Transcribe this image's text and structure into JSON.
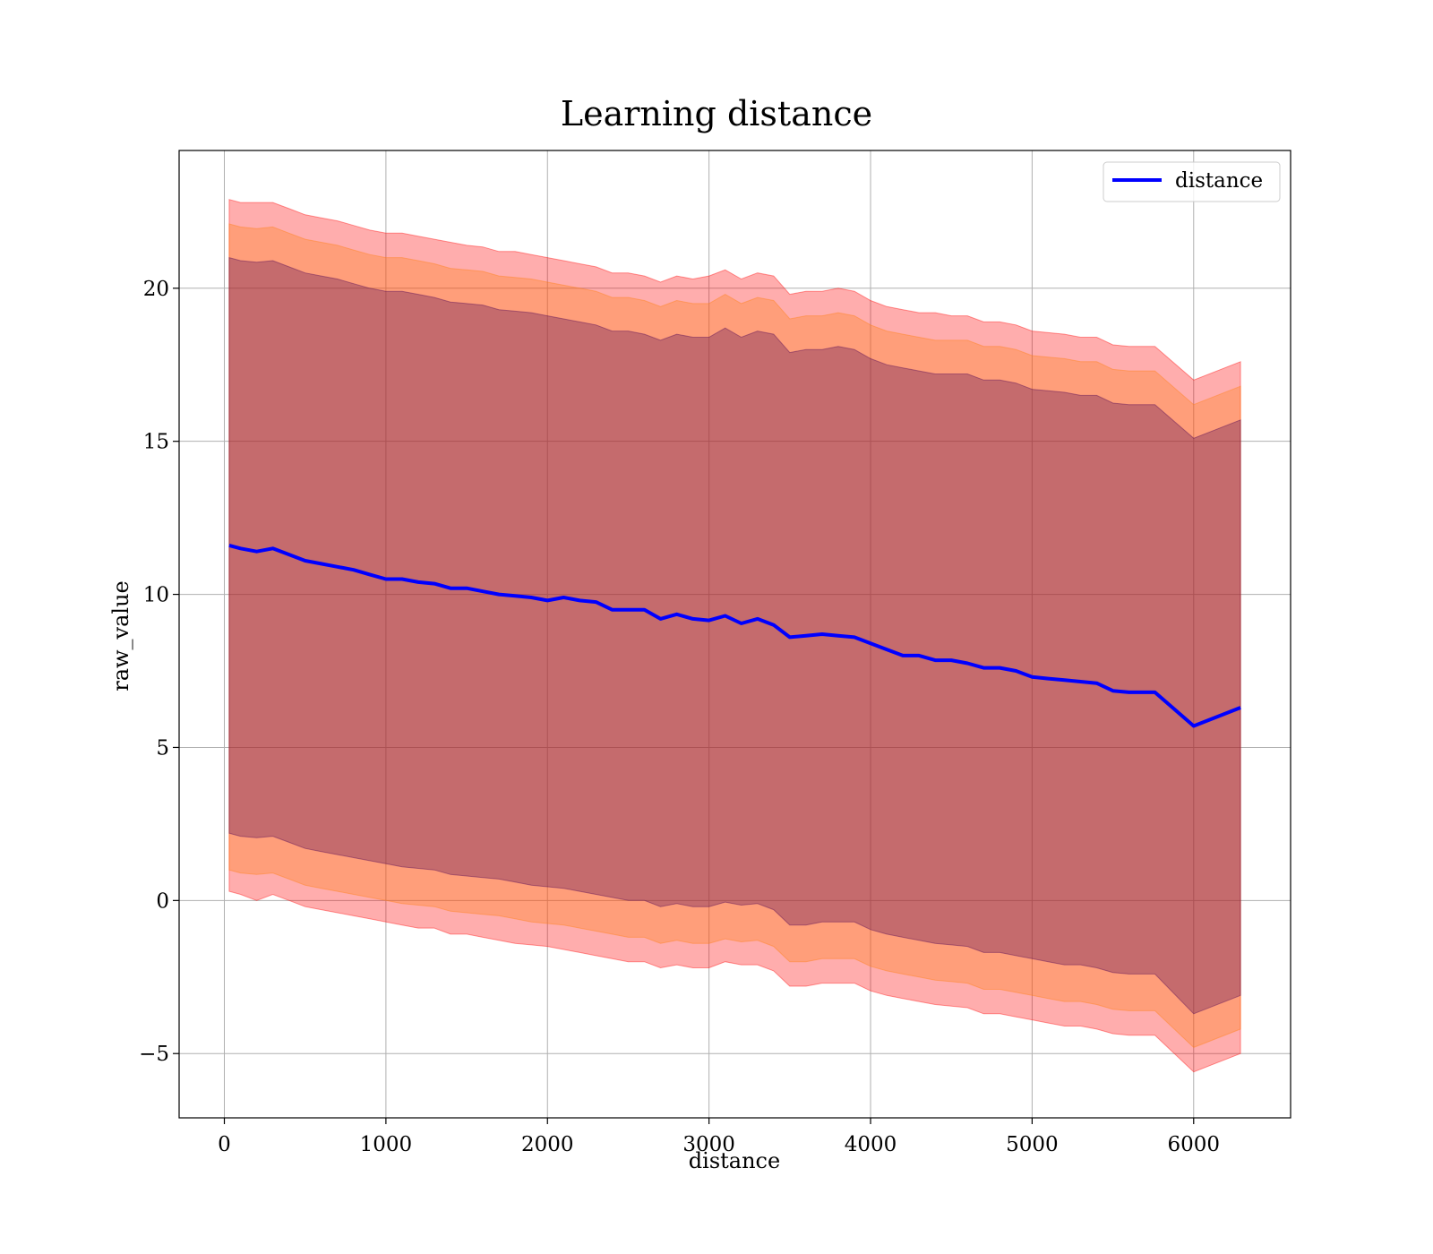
{
  "chart_data": {
    "type": "line",
    "title": "Learning distance",
    "xlabel": "distance",
    "ylabel": "raw_value",
    "xlim": [
      -280,
      6600
    ],
    "ylim": [
      -7.1,
      24.5
    ],
    "xticks": [
      0,
      1000,
      2000,
      3000,
      4000,
      5000,
      6000
    ],
    "yticks": [
      -5,
      0,
      5,
      10,
      15,
      20
    ],
    "xtick_labels": [
      "0",
      "1000",
      "2000",
      "3000",
      "4000",
      "5000",
      "6000"
    ],
    "ytick_labels": [
      "−5",
      "0",
      "5",
      "10",
      "15",
      "20"
    ],
    "grid": true,
    "legend": {
      "position": "upper right",
      "entries": [
        "distance"
      ]
    },
    "colors": {
      "line": "#0000ff",
      "band_outer": "#ff0000",
      "band_middle": "#ff7f0e",
      "band_inner": "#4b0055",
      "grid": "#b0b0b0"
    },
    "x": [
      30,
      100,
      200,
      300,
      400,
      500,
      600,
      700,
      800,
      900,
      1000,
      1100,
      1200,
      1300,
      1400,
      1500,
      1600,
      1700,
      1800,
      1900,
      2000,
      2100,
      2200,
      2300,
      2400,
      2500,
      2600,
      2700,
      2800,
      2900,
      3000,
      3100,
      3200,
      3300,
      3400,
      3500,
      3600,
      3700,
      3800,
      3900,
      4000,
      4100,
      4200,
      4300,
      4400,
      4500,
      4600,
      4700,
      4800,
      4900,
      5000,
      5100,
      5200,
      5300,
      5400,
      5500,
      5600,
      5700,
      5760,
      6000,
      6290
    ],
    "series": [
      {
        "name": "distance",
        "values": [
          11.6,
          11.5,
          11.4,
          11.5,
          11.3,
          11.1,
          11.0,
          10.9,
          10.8,
          10.65,
          10.5,
          10.5,
          10.4,
          10.35,
          10.2,
          10.2,
          10.1,
          10.0,
          9.95,
          9.9,
          9.8,
          9.9,
          9.8,
          9.75,
          9.5,
          9.5,
          9.5,
          9.2,
          9.35,
          9.2,
          9.15,
          9.3,
          9.05,
          9.2,
          9.0,
          8.6,
          8.65,
          8.7,
          8.65,
          8.6,
          8.4,
          8.2,
          8.0,
          8.0,
          7.85,
          7.85,
          7.75,
          7.6,
          7.6,
          7.5,
          7.3,
          7.25,
          7.2,
          7.15,
          7.1,
          6.85,
          6.8,
          6.8,
          6.8,
          5.7,
          6.3
        ]
      }
    ],
    "bands": [
      {
        "color": "#ff0000",
        "upper": [
          22.9,
          22.8,
          22.8,
          22.8,
          22.6,
          22.4,
          22.3,
          22.2,
          22.05,
          21.9,
          21.8,
          21.8,
          21.7,
          21.6,
          21.5,
          21.4,
          21.35,
          21.2,
          21.2,
          21.1,
          21.0,
          20.9,
          20.8,
          20.7,
          20.5,
          20.5,
          20.4,
          20.2,
          20.4,
          20.3,
          20.4,
          20.6,
          20.3,
          20.5,
          20.4,
          19.8,
          19.9,
          19.9,
          20.0,
          19.9,
          19.6,
          19.4,
          19.3,
          19.2,
          19.2,
          19.1,
          19.1,
          18.9,
          18.9,
          18.8,
          18.6,
          18.55,
          18.5,
          18.4,
          18.4,
          18.15,
          18.1,
          18.1,
          18.1,
          17.0,
          17.6
        ],
        "lower": [
          0.3,
          0.2,
          0.0,
          0.2,
          -0.0,
          -0.2,
          -0.3,
          -0.4,
          -0.5,
          -0.6,
          -0.7,
          -0.8,
          -0.9,
          -0.9,
          -1.1,
          -1.1,
          -1.2,
          -1.3,
          -1.4,
          -1.45,
          -1.5,
          -1.6,
          -1.7,
          -1.8,
          -1.9,
          -2.0,
          -2.0,
          -2.2,
          -2.1,
          -2.2,
          -2.2,
          -2.0,
          -2.1,
          -2.1,
          -2.3,
          -2.8,
          -2.8,
          -2.7,
          -2.7,
          -2.7,
          -2.95,
          -3.1,
          -3.2,
          -3.3,
          -3.4,
          -3.45,
          -3.5,
          -3.7,
          -3.7,
          -3.8,
          -3.9,
          -4.0,
          -4.1,
          -4.1,
          -4.2,
          -4.35,
          -4.4,
          -4.4,
          -4.4,
          -5.6,
          -5.0
        ]
      },
      {
        "color": "#ff7f0e",
        "upper": [
          22.1,
          22.0,
          21.95,
          22.0,
          21.8,
          21.6,
          21.5,
          21.4,
          21.25,
          21.1,
          21.0,
          21.0,
          20.9,
          20.8,
          20.65,
          20.6,
          20.55,
          20.4,
          20.35,
          20.3,
          20.2,
          20.1,
          20.0,
          19.9,
          19.7,
          19.7,
          19.6,
          19.4,
          19.6,
          19.5,
          19.5,
          19.8,
          19.5,
          19.7,
          19.6,
          19.0,
          19.1,
          19.1,
          19.2,
          19.1,
          18.8,
          18.6,
          18.5,
          18.4,
          18.3,
          18.3,
          18.3,
          18.1,
          18.1,
          18.0,
          17.8,
          17.75,
          17.7,
          17.6,
          17.6,
          17.35,
          17.3,
          17.3,
          17.3,
          16.2,
          16.8
        ],
        "lower": [
          1.0,
          0.9,
          0.85,
          0.9,
          0.7,
          0.5,
          0.4,
          0.3,
          0.2,
          0.1,
          0.0,
          -0.1,
          -0.15,
          -0.2,
          -0.35,
          -0.4,
          -0.45,
          -0.5,
          -0.6,
          -0.7,
          -0.75,
          -0.8,
          -0.9,
          -1.0,
          -1.1,
          -1.2,
          -1.2,
          -1.4,
          -1.3,
          -1.4,
          -1.4,
          -1.25,
          -1.35,
          -1.3,
          -1.5,
          -2.0,
          -2.0,
          -1.9,
          -1.9,
          -1.9,
          -2.15,
          -2.3,
          -2.4,
          -2.5,
          -2.6,
          -2.65,
          -2.7,
          -2.9,
          -2.9,
          -3.0,
          -3.1,
          -3.2,
          -3.3,
          -3.3,
          -3.4,
          -3.55,
          -3.6,
          -3.6,
          -3.6,
          -4.8,
          -4.2
        ]
      },
      {
        "color": "#4b0055",
        "upper": [
          21.0,
          20.9,
          20.85,
          20.9,
          20.7,
          20.5,
          20.4,
          20.3,
          20.15,
          20.0,
          19.9,
          19.9,
          19.8,
          19.7,
          19.55,
          19.5,
          19.45,
          19.3,
          19.25,
          19.2,
          19.1,
          19.0,
          18.9,
          18.8,
          18.6,
          18.6,
          18.5,
          18.3,
          18.5,
          18.4,
          18.4,
          18.7,
          18.4,
          18.6,
          18.5,
          17.9,
          18.0,
          18.0,
          18.1,
          18.0,
          17.7,
          17.5,
          17.4,
          17.3,
          17.2,
          17.2,
          17.2,
          17.0,
          17.0,
          16.9,
          16.7,
          16.65,
          16.6,
          16.5,
          16.5,
          16.25,
          16.2,
          16.2,
          16.2,
          15.1,
          15.7
        ],
        "lower": [
          2.2,
          2.1,
          2.05,
          2.1,
          1.9,
          1.7,
          1.6,
          1.5,
          1.4,
          1.3,
          1.2,
          1.1,
          1.05,
          1.0,
          0.85,
          0.8,
          0.75,
          0.7,
          0.6,
          0.5,
          0.45,
          0.4,
          0.3,
          0.2,
          0.1,
          0.0,
          0.0,
          -0.2,
          -0.1,
          -0.2,
          -0.2,
          -0.05,
          -0.15,
          -0.1,
          -0.3,
          -0.8,
          -0.8,
          -0.7,
          -0.7,
          -0.7,
          -0.95,
          -1.1,
          -1.2,
          -1.3,
          -1.4,
          -1.45,
          -1.5,
          -1.7,
          -1.7,
          -1.8,
          -1.9,
          -2.0,
          -2.1,
          -2.1,
          -2.2,
          -2.35,
          -2.4,
          -2.4,
          -2.4,
          -3.7,
          -3.1
        ]
      }
    ]
  }
}
